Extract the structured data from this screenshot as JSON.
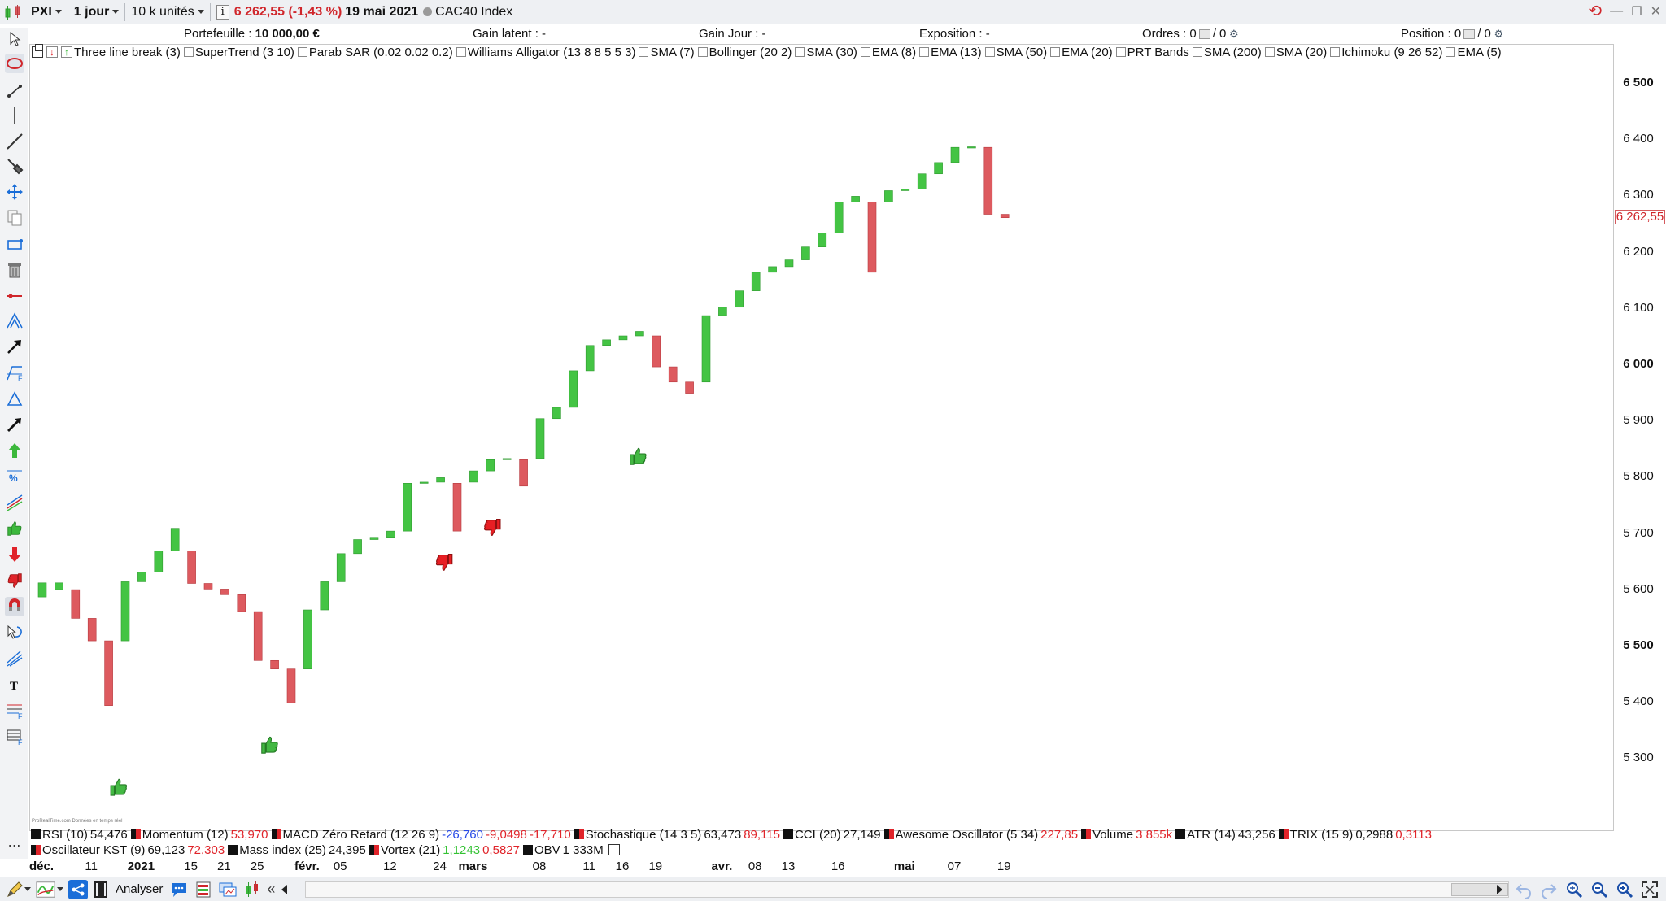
{
  "toolbar": {
    "symbol": "PXI",
    "timeframe": "1 jour",
    "units": "10 k unités",
    "info_glyph": "i",
    "price_change": "6 262,55 (-1,43 %)",
    "date": "19 mai 2021",
    "instrument": "CAC40 Index"
  },
  "info": {
    "portefeuille_label": "Portefeuille :",
    "portefeuille_value": "10 000,00 €",
    "gain_latent": "Gain latent : -",
    "gain_jour": "Gain Jour : -",
    "exposition": "Exposition : -",
    "ordres_label": "Ordres : 0",
    "ordres_value": "/ 0",
    "position_label": "Position : 0",
    "position_value": "/ 0"
  },
  "indicators_top": [
    "Three line break (3)",
    "SuperTrend (3 10)",
    "Parab SAR (0.02 0.02 0.2)",
    "Williams Alligator (13 8 8 5 5 3)",
    "SMA (7)",
    "Bollinger (20 2)",
    "SMA (30)",
    "EMA (8)",
    "EMA (13)",
    "SMA (50)",
    "EMA (20)",
    "PRT Bands",
    "SMA (200)",
    "SMA (20)",
    "Ichimoku (9 26 52)",
    "EMA (5)"
  ],
  "indicators_bottom_row1": [
    {
      "name": "RSI (10)",
      "values": [
        {
          "v": "54,476",
          "c": "neu"
        }
      ]
    },
    {
      "name": "Momentum (12)",
      "values": [
        {
          "v": "53,970",
          "c": "red"
        }
      ]
    },
    {
      "name": "MACD Zéro Retard (12 26 9)",
      "values": [
        {
          "v": "-26,760",
          "c": "blu"
        },
        {
          "v": "-9,0498",
          "c": "red"
        },
        {
          "v": "-17,710",
          "c": "red"
        }
      ]
    },
    {
      "name": "Stochastique (14 3 5)",
      "values": [
        {
          "v": "63,473",
          "c": "neu"
        },
        {
          "v": "89,115",
          "c": "red"
        }
      ]
    },
    {
      "name": "CCI (20)",
      "values": [
        {
          "v": "27,149",
          "c": "neu"
        }
      ]
    },
    {
      "name": "Awesome Oscillator (5 34)",
      "values": [
        {
          "v": "227,85",
          "c": "red"
        }
      ]
    },
    {
      "name": "Volume",
      "values": [
        {
          "v": "3 855k",
          "c": "red"
        }
      ]
    },
    {
      "name": "ATR (14)",
      "values": [
        {
          "v": "43,256",
          "c": "neu"
        }
      ]
    },
    {
      "name": "TRIX (15 9)",
      "values": [
        {
          "v": "0,2988",
          "c": "neu"
        },
        {
          "v": "0,3113",
          "c": "red"
        }
      ]
    }
  ],
  "indicators_bottom_row2": [
    {
      "name": "Oscillateur KST (9)",
      "values": [
        {
          "v": "69,123",
          "c": "neu"
        },
        {
          "v": "72,303",
          "c": "red"
        }
      ]
    },
    {
      "name": "Mass index (25)",
      "values": [
        {
          "v": "24,395",
          "c": "neu"
        }
      ]
    },
    {
      "name": "Vortex (21)",
      "values": [
        {
          "v": "1,1243",
          "c": "grn"
        },
        {
          "v": "0,5827",
          "c": "red"
        }
      ]
    },
    {
      "name": "OBV",
      "values": [
        {
          "v": "1 333M",
          "c": "neu"
        }
      ]
    }
  ],
  "price_axis": [
    {
      "label": "6 500",
      "value": 6500,
      "bold": true
    },
    {
      "label": "6 400",
      "value": 6400,
      "bold": false
    },
    {
      "label": "6 300",
      "value": 6300,
      "bold": false
    },
    {
      "label": "6 200",
      "value": 6200,
      "bold": false
    },
    {
      "label": "6 100",
      "value": 6100,
      "bold": false
    },
    {
      "label": "6 000",
      "value": 6000,
      "bold": true
    },
    {
      "label": "5 900",
      "value": 5900,
      "bold": false
    },
    {
      "label": "5 800",
      "value": 5800,
      "bold": false
    },
    {
      "label": "5 700",
      "value": 5700,
      "bold": false
    },
    {
      "label": "5 600",
      "value": 5600,
      "bold": false
    },
    {
      "label": "5 500",
      "value": 5500,
      "bold": true
    },
    {
      "label": "5 400",
      "value": 5400,
      "bold": false
    },
    {
      "label": "5 300",
      "value": 5300,
      "bold": false
    }
  ],
  "last_price_label": "6 262,55",
  "date_axis": [
    {
      "label": "déc.",
      "bar": 0,
      "bold": true
    },
    {
      "label": "11",
      "bar": 3,
      "bold": false
    },
    {
      "label": "2021",
      "bar": 6,
      "bold": true
    },
    {
      "label": "15",
      "bar": 9,
      "bold": false
    },
    {
      "label": "21",
      "bar": 11,
      "bold": false
    },
    {
      "label": "25",
      "bar": 13,
      "bold": false
    },
    {
      "label": "févr.",
      "bar": 16,
      "bold": true
    },
    {
      "label": "05",
      "bar": 18,
      "bold": false
    },
    {
      "label": "12",
      "bar": 21,
      "bold": false
    },
    {
      "label": "24",
      "bar": 24,
      "bold": false
    },
    {
      "label": "mars",
      "bar": 26,
      "bold": true
    },
    {
      "label": "08",
      "bar": 30,
      "bold": false
    },
    {
      "label": "11",
      "bar": 33,
      "bold": false
    },
    {
      "label": "16",
      "bar": 35,
      "bold": false
    },
    {
      "label": "19",
      "bar": 37,
      "bold": false
    },
    {
      "label": "avr.",
      "bar": 41,
      "bold": true
    },
    {
      "label": "08",
      "bar": 43,
      "bold": false
    },
    {
      "label": "13",
      "bar": 45,
      "bold": false
    },
    {
      "label": "16",
      "bar": 48,
      "bold": false
    },
    {
      "label": "mai",
      "bar": 52,
      "bold": true
    },
    {
      "label": "07",
      "bar": 55,
      "bold": false
    },
    {
      "label": "19",
      "bar": 58,
      "bold": false
    }
  ],
  "chart_data": {
    "type": "three_line_break",
    "ylim": [
      5200,
      6550
    ],
    "bars": [
      {
        "o": 5588,
        "c": 5613,
        "d": "up"
      },
      {
        "o": 5601,
        "c": 5613,
        "d": "up"
      },
      {
        "o": 5601,
        "c": 5550,
        "d": "down"
      },
      {
        "o": 5550,
        "c": 5510,
        "d": "down"
      },
      {
        "o": 5510,
        "c": 5395,
        "d": "down"
      },
      {
        "o": 5510,
        "c": 5615,
        "d": "up"
      },
      {
        "o": 5615,
        "c": 5632,
        "d": "up"
      },
      {
        "o": 5632,
        "c": 5670,
        "d": "up"
      },
      {
        "o": 5670,
        "c": 5710,
        "d": "up"
      },
      {
        "o": 5670,
        "c": 5612,
        "d": "down"
      },
      {
        "o": 5612,
        "c": 5602,
        "d": "down"
      },
      {
        "o": 5602,
        "c": 5592,
        "d": "down"
      },
      {
        "o": 5592,
        "c": 5562,
        "d": "down"
      },
      {
        "o": 5562,
        "c": 5475,
        "d": "down"
      },
      {
        "o": 5475,
        "c": 5460,
        "d": "down"
      },
      {
        "o": 5460,
        "c": 5400,
        "d": "down"
      },
      {
        "o": 5460,
        "c": 5565,
        "d": "up"
      },
      {
        "o": 5565,
        "c": 5615,
        "d": "up"
      },
      {
        "o": 5615,
        "c": 5665,
        "d": "up"
      },
      {
        "o": 5665,
        "c": 5690,
        "d": "up"
      },
      {
        "o": 5690,
        "c": 5694,
        "d": "up"
      },
      {
        "o": 5694,
        "c": 5705,
        "d": "up"
      },
      {
        "o": 5705,
        "c": 5790,
        "d": "up"
      },
      {
        "o": 5790,
        "c": 5792,
        "d": "up"
      },
      {
        "o": 5792,
        "c": 5800,
        "d": "up"
      },
      {
        "o": 5790,
        "c": 5705,
        "d": "down"
      },
      {
        "o": 5792,
        "c": 5812,
        "d": "up"
      },
      {
        "o": 5812,
        "c": 5832,
        "d": "up"
      },
      {
        "o": 5832,
        "c": 5834,
        "d": "up"
      },
      {
        "o": 5832,
        "c": 5785,
        "d": "down"
      },
      {
        "o": 5834,
        "c": 5905,
        "d": "up"
      },
      {
        "o": 5905,
        "c": 5925,
        "d": "up"
      },
      {
        "o": 5925,
        "c": 5990,
        "d": "up"
      },
      {
        "o": 5990,
        "c": 6035,
        "d": "up"
      },
      {
        "o": 6035,
        "c": 6045,
        "d": "up"
      },
      {
        "o": 6045,
        "c": 6052,
        "d": "up"
      },
      {
        "o": 6052,
        "c": 6060,
        "d": "up"
      },
      {
        "o": 6052,
        "c": 5997,
        "d": "down"
      },
      {
        "o": 5997,
        "c": 5970,
        "d": "down"
      },
      {
        "o": 5970,
        "c": 5950,
        "d": "down"
      },
      {
        "o": 5970,
        "c": 6088,
        "d": "up"
      },
      {
        "o": 6088,
        "c": 6103,
        "d": "up"
      },
      {
        "o": 6103,
        "c": 6132,
        "d": "up"
      },
      {
        "o": 6132,
        "c": 6165,
        "d": "up"
      },
      {
        "o": 6165,
        "c": 6175,
        "d": "up"
      },
      {
        "o": 6175,
        "c": 6187,
        "d": "up"
      },
      {
        "o": 6187,
        "c": 6210,
        "d": "up"
      },
      {
        "o": 6210,
        "c": 6235,
        "d": "up"
      },
      {
        "o": 6235,
        "c": 6290,
        "d": "up"
      },
      {
        "o": 6290,
        "c": 6300,
        "d": "up"
      },
      {
        "o": 6290,
        "c": 6165,
        "d": "down"
      },
      {
        "o": 6290,
        "c": 6310,
        "d": "up"
      },
      {
        "o": 6310,
        "c": 6313,
        "d": "up"
      },
      {
        "o": 6313,
        "c": 6340,
        "d": "up"
      },
      {
        "o": 6340,
        "c": 6360,
        "d": "up"
      },
      {
        "o": 6360,
        "c": 6387,
        "d": "up"
      },
      {
        "o": 6387,
        "c": 6388,
        "d": "up"
      },
      {
        "o": 6387,
        "c": 6268,
        "d": "down"
      },
      {
        "o": 6268,
        "c": 6262,
        "d": "down"
      }
    ],
    "signals": [
      {
        "type": "thumbs-up",
        "bar": 4.6,
        "price": 5250
      },
      {
        "type": "thumbs-up",
        "bar": 13.7,
        "price": 5325
      },
      {
        "type": "thumbs-down",
        "bar": 24.2,
        "price": 5650
      },
      {
        "type": "thumbs-down",
        "bar": 27.1,
        "price": 5712
      },
      {
        "type": "thumbs-up",
        "bar": 35.9,
        "price": 5838
      }
    ],
    "colors": {
      "up": "#44c444",
      "down": "#dd5a5f",
      "up_edge": "#2f9a2f",
      "down_edge": "#b63a3f"
    }
  }
}
